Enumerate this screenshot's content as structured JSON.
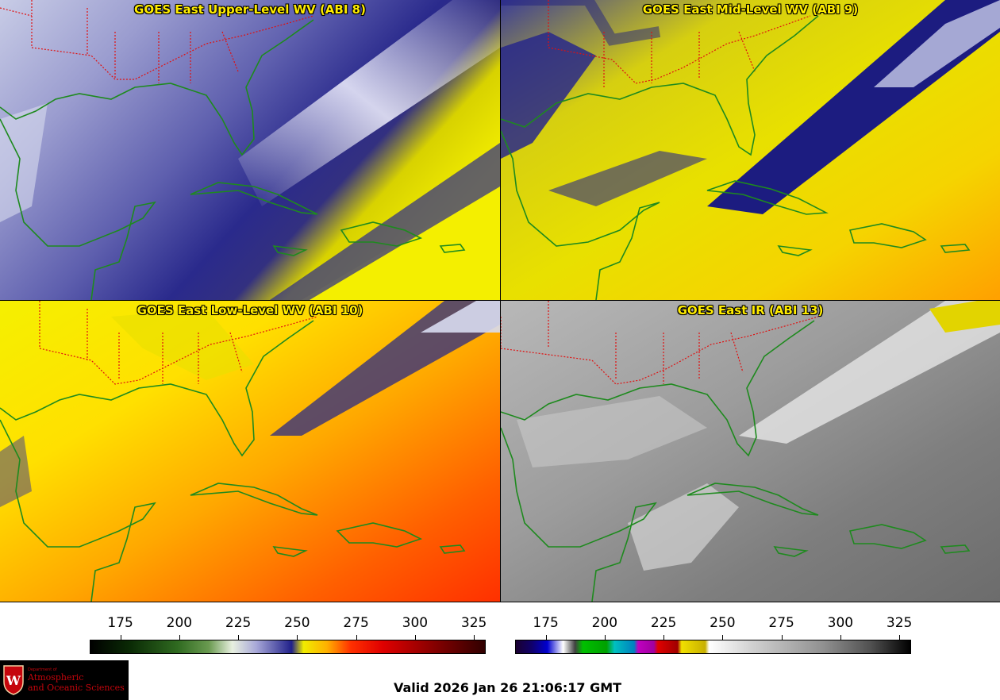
{
  "panels": [
    {
      "title": "GOES East Upper-Level WV (ABI 8)"
    },
    {
      "title": "GOES East Mid-Level WV (ABI 9)"
    },
    {
      "title": "GOES East Low-Level WV (ABI 10)"
    },
    {
      "title": "GOES East IR (ABI 13)"
    }
  ],
  "colorbars": {
    "wv": {
      "ticks": [
        "175",
        "200",
        "225",
        "250",
        "275",
        "300",
        "325"
      ],
      "tick_values": [
        175,
        200,
        225,
        250,
        275,
        300,
        325
      ],
      "range": [
        162,
        330
      ]
    },
    "ir": {
      "ticks": [
        "175",
        "200",
        "225",
        "250",
        "275",
        "300",
        "325"
      ],
      "tick_values": [
        175,
        200,
        225,
        250,
        275,
        300,
        325
      ],
      "range": [
        162,
        330
      ]
    }
  },
  "valid_time": "Valid 2026 Jan 26 21:06:17 GMT",
  "logo": {
    "department": "Department of",
    "line1": "Atmospheric",
    "line2": "and Oceanic Sciences",
    "shield_letter": "W"
  },
  "colors": {
    "title_text": "#ffec00",
    "state_borders": "#e01010",
    "coastlines": "#1e8a1e",
    "upper_wv_dry": "#f2ee00",
    "upper_wv_moist": "#1a1a80"
  }
}
